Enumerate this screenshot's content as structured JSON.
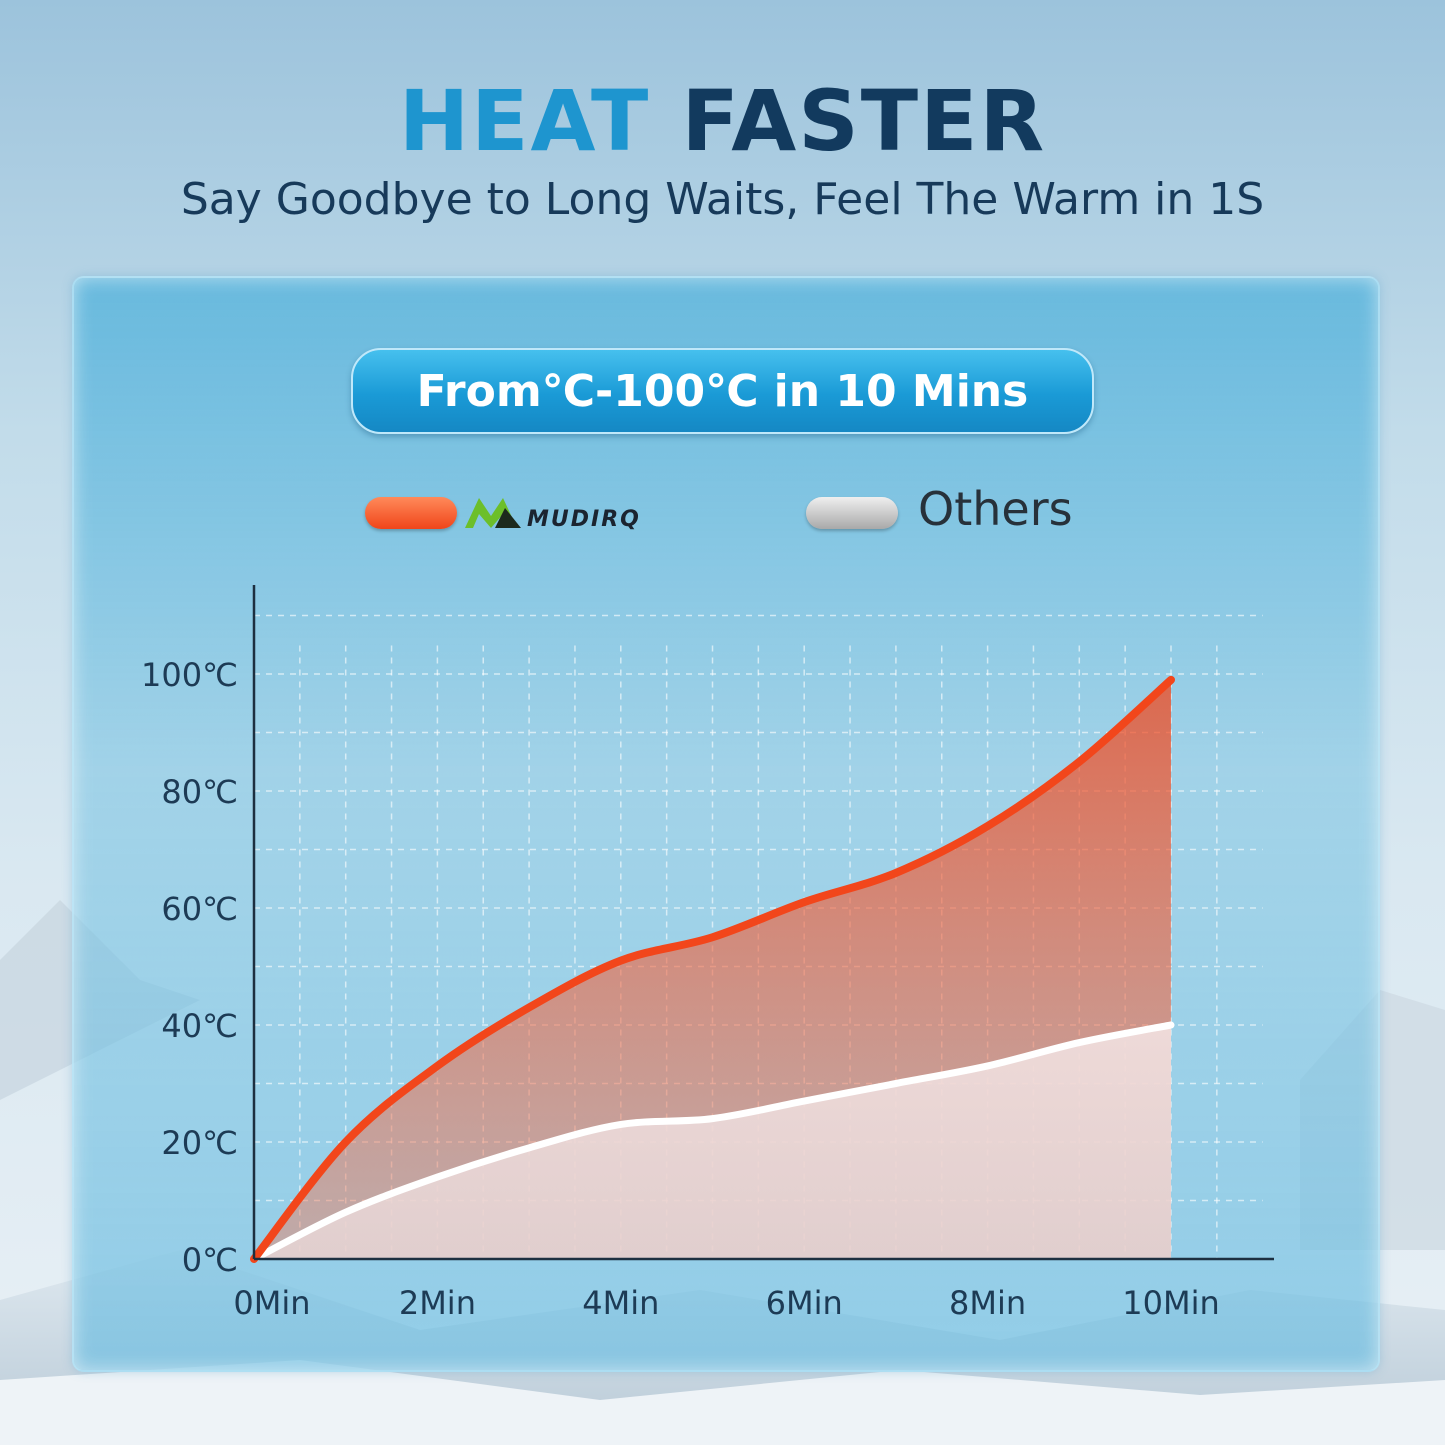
{
  "header": {
    "title_part1": "HEAT",
    "title_part2": "FASTER",
    "subtitle": "Say Goodbye to Long Waits, Feel The Warm in 1S"
  },
  "badge": {
    "text": "From℃-100℃ in 10 Mins"
  },
  "legend": {
    "brand_name": "MUDIRQ",
    "others_label": "Others"
  },
  "colors": {
    "brand_series": "#f2461b",
    "others_series": "#ffffff",
    "title_accent": "#1e95cf",
    "title_dark": "#123a5e"
  },
  "chart_data": {
    "type": "area",
    "x": [
      0,
      1,
      2,
      3,
      4,
      5,
      6,
      7,
      8,
      9,
      10
    ],
    "x_tick_labels": [
      "0Min",
      "2Min",
      "4Min",
      "6Min",
      "8Min",
      "10Min"
    ],
    "x_tick_values": [
      0,
      2,
      4,
      6,
      8,
      10
    ],
    "y_tick_labels": [
      "0℃",
      "20℃",
      "40℃",
      "60℃",
      "80℃",
      "100℃"
    ],
    "y_tick_values": [
      0,
      20,
      40,
      60,
      80,
      100
    ],
    "xlim": [
      0,
      11
    ],
    "ylim": [
      0,
      110
    ],
    "grid": true,
    "series": [
      {
        "name": "MUDIRQ",
        "values": [
          0,
          20,
          33,
          43,
          51,
          55,
          61,
          66,
          74,
          85,
          99
        ]
      },
      {
        "name": "Others",
        "values": [
          0,
          8,
          14,
          19,
          23,
          24,
          27,
          30,
          33,
          37,
          40
        ]
      }
    ]
  }
}
